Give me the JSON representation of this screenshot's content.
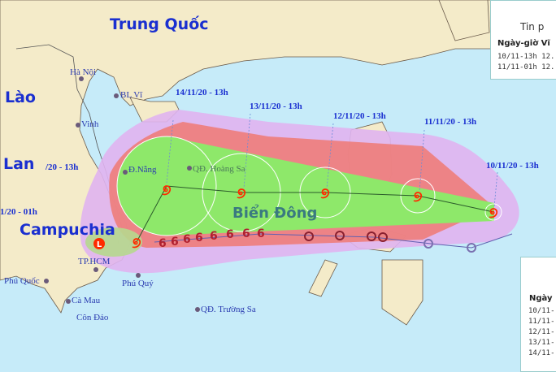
{
  "countries": {
    "china": "Trung Quốc",
    "laos": "Lào",
    "thailand": "Lan",
    "cambodia": "Campuchia"
  },
  "sea": "Biển Đông",
  "places": {
    "hanoi": "Hà Nội",
    "blvi": "BL Vĩ",
    "vinh": "Vinh",
    "danang": "Đ.Nẵng",
    "hoangsa": "QĐ. Hoàng Sa",
    "hcm": "TP.HCM",
    "phuquoc": "Phú Quốc",
    "phuquy": "Phú Quý",
    "camau": "Cà Mau",
    "condao": "Côn Đảo",
    "truongsa": "QĐ. Trường Sa"
  },
  "forecast_times": [
    "10/11/20 - 13h",
    "11/11/20 - 13h",
    "12/11/20 - 13h",
    "13/11/20 - 13h",
    "14/11/20 - 13h",
    "/20 - 13h",
    "1/20 - 01h"
  ],
  "legend_top": {
    "title": "Tin p",
    "header": "Ngày-giờ Vĩ",
    "rows": [
      "10/11-13h 12.",
      "11/11-01h 12."
    ]
  },
  "legend_bottom": {
    "header": "Ngày",
    "rows": [
      "10/11-",
      "11/11-",
      "12/11-",
      "13/11-",
      "14/11-"
    ]
  },
  "colors": {
    "sea": "#c6ebf9",
    "land": "#f4ebc9",
    "risk_outer": "#e0b4ef",
    "risk_strong": "#ee7d7a",
    "cone": "#8ee86a",
    "storm_icon": "#ff2a00",
    "past_track": "#8a2030"
  },
  "icons": {
    "storm": "typhoon-symbol",
    "low": "low-pressure-L"
  }
}
